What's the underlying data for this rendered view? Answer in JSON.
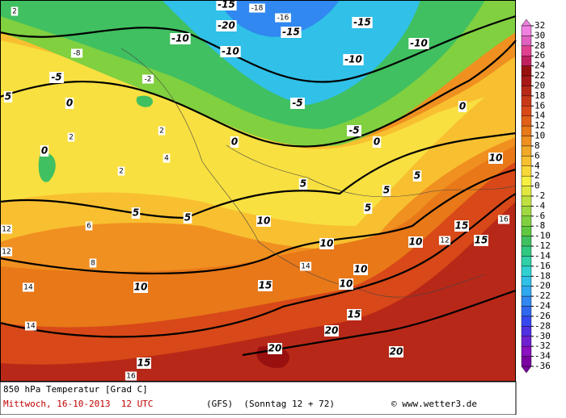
{
  "map": {
    "contour_labels": [
      -15,
      -18,
      -16,
      -20,
      -15,
      -15,
      -10,
      -10,
      -10,
      -10,
      -5,
      -5,
      -5,
      0,
      0,
      0,
      0,
      0,
      5,
      5,
      5,
      5,
      5,
      5,
      5,
      10,
      10,
      10,
      10,
      10,
      10,
      10,
      15,
      15,
      15,
      15,
      15,
      20,
      20,
      20,
      2,
      2,
      2,
      2,
      -8,
      -2,
      4,
      6,
      8,
      12,
      12,
      14,
      14,
      16,
      16,
      12,
      14
    ],
    "colorbar": {
      "ticks": [
        32,
        30,
        28,
        26,
        24,
        22,
        20,
        18,
        16,
        14,
        12,
        10,
        8,
        6,
        4,
        2,
        0,
        -2,
        -4,
        -6,
        -8,
        -10,
        -12,
        -14,
        -16,
        -18,
        -20,
        -22,
        -24,
        -26,
        -28,
        -30,
        -32,
        -34,
        -36
      ],
      "colors": [
        "#f080e0",
        "#e060c0",
        "#e04090",
        "#c02060",
        "#981010",
        "#a81818",
        "#b82818",
        "#c83818",
        "#d84818",
        "#e06018",
        "#e87818",
        "#f09020",
        "#f0a828",
        "#f8c030",
        "#f8d838",
        "#f8f040",
        "#e0e840",
        "#c0e040",
        "#a0d840",
        "#80d040",
        "#60c840",
        "#40c060",
        "#30c880",
        "#30d0a8",
        "#30d0d0",
        "#30c0e8",
        "#30a8f0",
        "#3088f0",
        "#3068f0",
        "#3848f0",
        "#5030e0",
        "#7020d0",
        "#8a10c0",
        "#7a00a0"
      ]
    }
  },
  "footer": {
    "title": "850 hPa Temperatur [Grad C]",
    "date": "Mittwoch, 16-10-2013  12 UTC",
    "model": "(GFS)  (Sonntag 12 + 72)",
    "credit": "© www.wetter3.de"
  }
}
